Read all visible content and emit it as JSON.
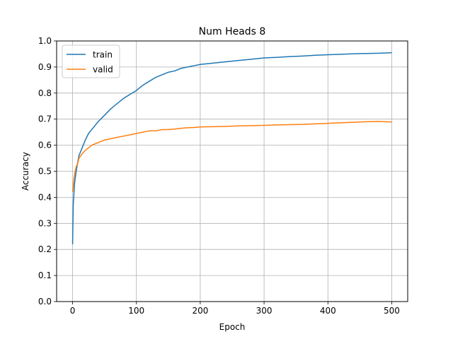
{
  "chart_data": {
    "type": "line",
    "title": "Num Heads 8",
    "xlabel": "Epoch",
    "ylabel": "Accuracy",
    "xlim": [
      -25,
      525
    ],
    "ylim": [
      0.0,
      1.0
    ],
    "xticks": [
      0,
      100,
      200,
      300,
      400,
      500
    ],
    "yticks": [
      0.0,
      0.1,
      0.2,
      0.3,
      0.4,
      0.5,
      0.6,
      0.7,
      0.8,
      0.9,
      1.0
    ],
    "xtick_labels": [
      "0",
      "100",
      "200",
      "300",
      "400",
      "500"
    ],
    "ytick_labels": [
      "0.0",
      "0.1",
      "0.2",
      "0.3",
      "0.4",
      "0.5",
      "0.6",
      "0.7",
      "0.8",
      "0.9",
      "1.0"
    ],
    "grid": true,
    "legend_position": "top-left",
    "series": [
      {
        "name": "train",
        "color": "#1f77b4",
        "x": [
          0,
          1,
          2,
          3,
          5,
          7,
          10,
          15,
          20,
          25,
          30,
          40,
          50,
          60,
          70,
          80,
          90,
          100,
          110,
          120,
          130,
          140,
          150,
          160,
          170,
          180,
          190,
          200,
          220,
          240,
          260,
          280,
          300,
          320,
          340,
          360,
          380,
          400,
          420,
          440,
          460,
          480,
          500
        ],
        "values": [
          0.22,
          0.37,
          0.41,
          0.45,
          0.49,
          0.52,
          0.56,
          0.59,
          0.62,
          0.645,
          0.66,
          0.69,
          0.715,
          0.74,
          0.76,
          0.78,
          0.795,
          0.81,
          0.83,
          0.845,
          0.86,
          0.87,
          0.88,
          0.885,
          0.895,
          0.9,
          0.905,
          0.91,
          0.915,
          0.92,
          0.925,
          0.93,
          0.935,
          0.937,
          0.94,
          0.942,
          0.945,
          0.947,
          0.949,
          0.951,
          0.952,
          0.953,
          0.955
        ]
      },
      {
        "name": "valid",
        "color": "#ff7f0e",
        "x": [
          0,
          2,
          4,
          6,
          8,
          10,
          13,
          16,
          20,
          25,
          30,
          35,
          40,
          50,
          60,
          70,
          80,
          90,
          100,
          110,
          120,
          130,
          140,
          150,
          160,
          170,
          180,
          190,
          200,
          220,
          240,
          260,
          280,
          300,
          320,
          340,
          360,
          380,
          400,
          420,
          440,
          460,
          480,
          500
        ],
        "values": [
          0.42,
          0.47,
          0.5,
          0.52,
          0.53,
          0.55,
          0.56,
          0.57,
          0.58,
          0.59,
          0.6,
          0.605,
          0.61,
          0.62,
          0.625,
          0.63,
          0.635,
          0.64,
          0.645,
          0.65,
          0.655,
          0.655,
          0.66,
          0.66,
          0.662,
          0.665,
          0.667,
          0.668,
          0.67,
          0.671,
          0.672,
          0.674,
          0.675,
          0.676,
          0.678,
          0.679,
          0.68,
          0.682,
          0.684,
          0.686,
          0.688,
          0.69,
          0.691,
          0.689
        ]
      }
    ]
  }
}
